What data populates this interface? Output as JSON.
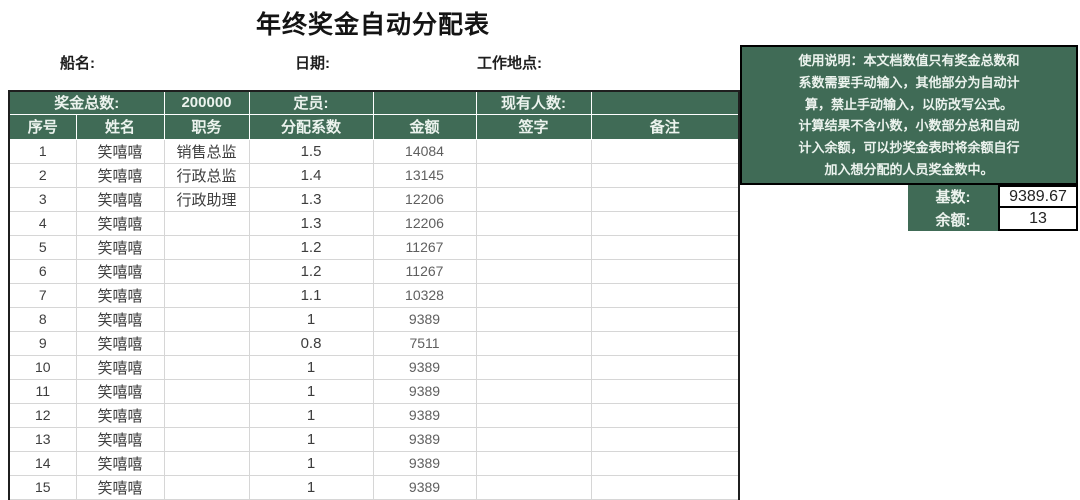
{
  "title": "年终奖金自动分配表",
  "top_fields": {
    "ship_label": "船名:",
    "date_label": "日期:",
    "location_label": "工作地点:"
  },
  "table": {
    "summary": {
      "bonus_total_label": "奖金总数:",
      "bonus_total_value": "200000",
      "quota_label": "定员:",
      "quota_value": "",
      "headcount_label": "现有人数:",
      "headcount_value": ""
    },
    "columns": [
      "序号",
      "姓名",
      "职务",
      "分配系数",
      "金额",
      "签字",
      "备注"
    ],
    "rows": [
      [
        "1",
        "笑嘻嘻",
        "销售总监",
        "1.5",
        "14084",
        "",
        ""
      ],
      [
        "2",
        "笑嘻嘻",
        "行政总监",
        "1.4",
        "13145",
        "",
        ""
      ],
      [
        "3",
        "笑嘻嘻",
        "行政助理",
        "1.3",
        "12206",
        "",
        ""
      ],
      [
        "4",
        "笑嘻嘻",
        "",
        "1.3",
        "12206",
        "",
        ""
      ],
      [
        "5",
        "笑嘻嘻",
        "",
        "1.2",
        "11267",
        "",
        ""
      ],
      [
        "6",
        "笑嘻嘻",
        "",
        "1.2",
        "11267",
        "",
        ""
      ],
      [
        "7",
        "笑嘻嘻",
        "",
        "1.1",
        "10328",
        "",
        ""
      ],
      [
        "8",
        "笑嘻嘻",
        "",
        "1",
        "9389",
        "",
        ""
      ],
      [
        "9",
        "笑嘻嘻",
        "",
        "0.8",
        "7511",
        "",
        ""
      ],
      [
        "10",
        "笑嘻嘻",
        "",
        "1",
        "9389",
        "",
        ""
      ],
      [
        "11",
        "笑嘻嘻",
        "",
        "1",
        "9389",
        "",
        ""
      ],
      [
        "12",
        "笑嘻嘻",
        "",
        "1",
        "9389",
        "",
        ""
      ],
      [
        "13",
        "笑嘻嘻",
        "",
        "1",
        "9389",
        "",
        ""
      ],
      [
        "14",
        "笑嘻嘻",
        "",
        "1",
        "9389",
        "",
        ""
      ],
      [
        "15",
        "笑嘻嘻",
        "",
        "1",
        "9389",
        "",
        ""
      ]
    ]
  },
  "notice": {
    "lines": [
      "使用说明：本文档数值只有奖金总数和",
      "系数需要手动输入，其他部分为自动计",
      "算，禁止手动输入，以防改写公式。",
      "计算结果不含小数，小数部分总和自动",
      "计入余额，可以抄奖金表时将余额自行",
      "加入想分配的人员奖金数中。"
    ]
  },
  "footer": {
    "base_label": "基数:",
    "base_value": "9389.67",
    "remainder_label": "余额:",
    "remainder_value": "13"
  },
  "colors": {
    "header_green": "#406b56",
    "light_green_value_text": "#a9c9b5",
    "grid_line": "#d6d6d6"
  }
}
